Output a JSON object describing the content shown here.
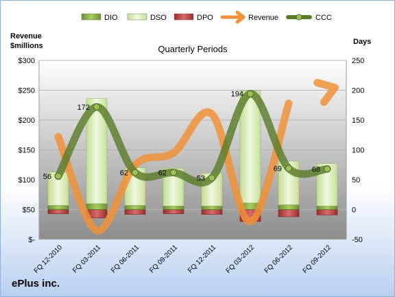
{
  "chart_data": {
    "type": "bar",
    "subtitle": "Quarterly Periods",
    "left_axis_label": "Revenue\n$millions",
    "right_axis_label": "Days",
    "company": "ePlus inc.",
    "categories": [
      "FQ 12-2010",
      "FQ 03-2011",
      "FQ 06-2011",
      "FQ 09-2011",
      "FQ 12-2011",
      "FQ 03-2012",
      "FQ 06-2012",
      "FQ 09-2012"
    ],
    "left_ticks": [
      "$300",
      "$250",
      "$200",
      "$150",
      "$100",
      "$50",
      "$-"
    ],
    "right_ticks": [
      "250",
      "200",
      "150",
      "100",
      "50",
      "0",
      "-50"
    ],
    "left_ylim": [
      0,
      300
    ],
    "right_ylim": [
      -50,
      250
    ],
    "legend_position": "top",
    "series": [
      {
        "name": "DIO",
        "kind": "bar",
        "axis": "right",
        "color": "#7fa33a",
        "values": [
          7,
          10,
          7,
          6,
          6,
          11,
          8,
          6
        ]
      },
      {
        "name": "DSO",
        "kind": "bar",
        "axis": "right",
        "color": "#d6e8b0",
        "values": [
          56,
          176,
          63,
          63,
          55,
          188,
          73,
          71
        ]
      },
      {
        "name": "DPO",
        "kind": "bar",
        "axis": "right",
        "color": "#b33a3a",
        "values": [
          -7,
          -14,
          -8,
          -7,
          -8,
          -20,
          -12,
          -9
        ]
      },
      {
        "name": "Revenue",
        "kind": "line",
        "axis": "left",
        "color": "#f0923a",
        "values": [
          172,
          15,
          125,
          145,
          210,
          30,
          228,
          250
        ]
      },
      {
        "name": "CCC",
        "kind": "line",
        "axis": "right",
        "color": "#5a7d2a",
        "values": [
          56,
          172,
          62,
          62,
          53,
          194,
          69,
          68
        ]
      }
    ],
    "ccc_labels": [
      "56",
      "172",
      "62",
      "62",
      "53",
      "194",
      "69",
      "68"
    ]
  }
}
